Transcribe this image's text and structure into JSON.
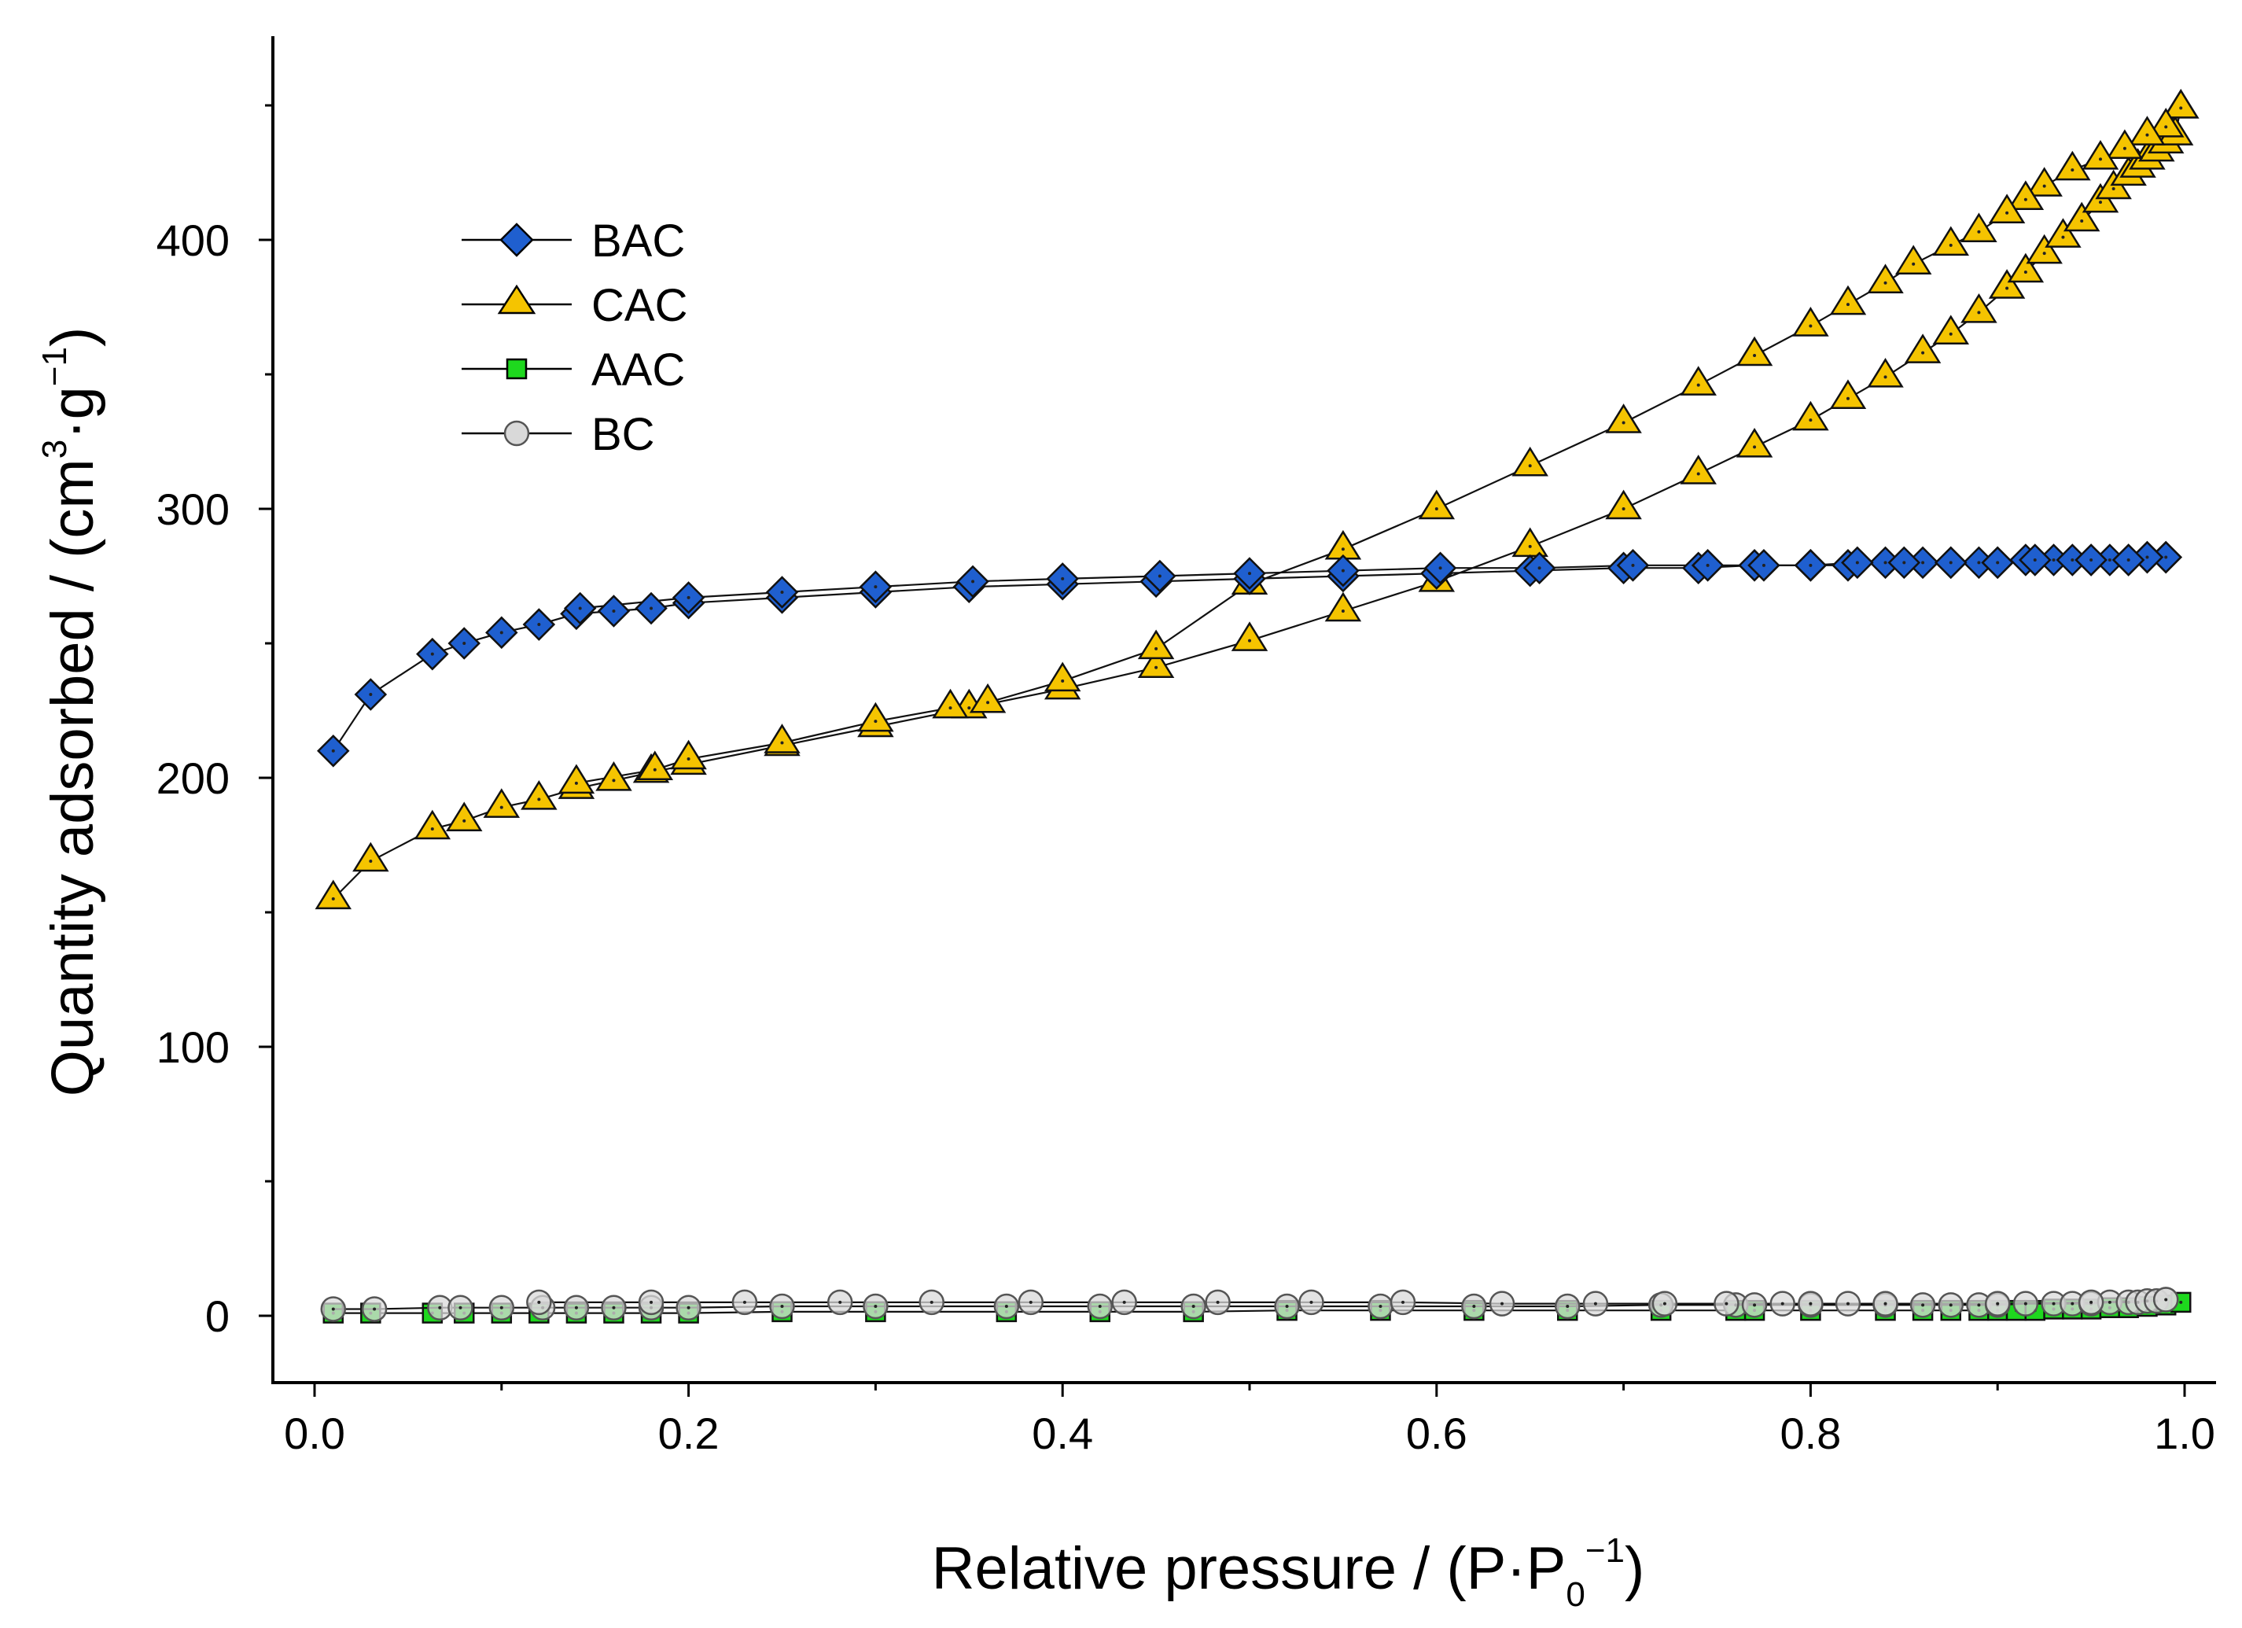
{
  "chart_data": {
    "type": "scatter",
    "title": "",
    "xlabel": {
      "main": "Relative pressure / (P·P",
      "sub": "0",
      "sup": "−1",
      "end": ")"
    },
    "ylabel": {
      "main": "Quantity adsorbed / (cm",
      "sup1": "3",
      "mid": "·g",
      "sup2": "−1",
      "end": ")"
    },
    "xlim": [
      -0.02,
      1.02
    ],
    "ylim": [
      -25,
      470
    ],
    "xticks": [
      0.0,
      0.2,
      0.4,
      0.6,
      0.8,
      1.0
    ],
    "xtick_labels": [
      "0.0",
      "0.2",
      "0.4",
      "0.6",
      "0.8",
      "1.0"
    ],
    "yticks": [
      0,
      100,
      200,
      300,
      400
    ],
    "ytick_labels": [
      "0",
      "100",
      "200",
      "300",
      "400"
    ],
    "legend_position": "top-left",
    "series": [
      {
        "name": "BAC",
        "marker": "diamond",
        "color": "#1f5fcf",
        "adsorption": [
          [
            0.01,
            210
          ],
          [
            0.03,
            231
          ],
          [
            0.063,
            246
          ],
          [
            0.08,
            250
          ],
          [
            0.1,
            254
          ],
          [
            0.12,
            257
          ],
          [
            0.14,
            261
          ],
          [
            0.16,
            262
          ],
          [
            0.18,
            263
          ],
          [
            0.2,
            265
          ],
          [
            0.25,
            267
          ],
          [
            0.3,
            269
          ],
          [
            0.35,
            271
          ],
          [
            0.4,
            272
          ],
          [
            0.45,
            273
          ],
          [
            0.5,
            274
          ],
          [
            0.55,
            275
          ],
          [
            0.6,
            276
          ],
          [
            0.65,
            277
          ],
          [
            0.7,
            278
          ],
          [
            0.74,
            278
          ],
          [
            0.77,
            279
          ],
          [
            0.8,
            279
          ],
          [
            0.82,
            279
          ],
          [
            0.84,
            280
          ],
          [
            0.86,
            280
          ],
          [
            0.875,
            280
          ],
          [
            0.89,
            280
          ],
          [
            0.9,
            280
          ],
          [
            0.915,
            281
          ],
          [
            0.93,
            281
          ],
          [
            0.94,
            281
          ],
          [
            0.95,
            281
          ],
          [
            0.96,
            281
          ],
          [
            0.97,
            281
          ],
          [
            0.98,
            282
          ],
          [
            0.99,
            282
          ]
        ],
        "desorption": [
          [
            0.99,
            282
          ],
          [
            0.98,
            282
          ],
          [
            0.97,
            281
          ],
          [
            0.95,
            281
          ],
          [
            0.92,
            281
          ],
          [
            0.9,
            280
          ],
          [
            0.875,
            280
          ],
          [
            0.85,
            280
          ],
          [
            0.825,
            280
          ],
          [
            0.8,
            279
          ],
          [
            0.775,
            279
          ],
          [
            0.745,
            279
          ],
          [
            0.705,
            279
          ],
          [
            0.655,
            278
          ],
          [
            0.602,
            278
          ],
          [
            0.55,
            277
          ],
          [
            0.5,
            276
          ],
          [
            0.452,
            275
          ],
          [
            0.4,
            274
          ],
          [
            0.352,
            273
          ],
          [
            0.3,
            271
          ],
          [
            0.25,
            269
          ],
          [
            0.2,
            267
          ],
          [
            0.142,
            263
          ]
        ]
      },
      {
        "name": "CAC",
        "marker": "triangle",
        "color": "#f5c400",
        "adsorption": [
          [
            0.01,
            155
          ],
          [
            0.03,
            169
          ],
          [
            0.063,
            181
          ],
          [
            0.08,
            184
          ],
          [
            0.1,
            189
          ],
          [
            0.12,
            192
          ],
          [
            0.14,
            196
          ],
          [
            0.16,
            199
          ],
          [
            0.18,
            202
          ],
          [
            0.2,
            205
          ],
          [
            0.25,
            212
          ],
          [
            0.3,
            219
          ],
          [
            0.35,
            226
          ],
          [
            0.4,
            233
          ],
          [
            0.45,
            241
          ],
          [
            0.5,
            251
          ],
          [
            0.55,
            262
          ],
          [
            0.6,
            273
          ],
          [
            0.65,
            286
          ],
          [
            0.7,
            300
          ],
          [
            0.74,
            313
          ],
          [
            0.77,
            323
          ],
          [
            0.8,
            333
          ],
          [
            0.82,
            341
          ],
          [
            0.84,
            349
          ],
          [
            0.86,
            358
          ],
          [
            0.875,
            365
          ],
          [
            0.89,
            373
          ],
          [
            0.905,
            382
          ],
          [
            0.915,
            388
          ],
          [
            0.925,
            395
          ],
          [
            0.935,
            401
          ],
          [
            0.945,
            407
          ],
          [
            0.955,
            414
          ],
          [
            0.962,
            419
          ],
          [
            0.97,
            424
          ],
          [
            0.975,
            427
          ],
          [
            0.98,
            430
          ],
          [
            0.985,
            433
          ],
          [
            0.99,
            436
          ],
          [
            0.995,
            439
          ],
          [
            0.998,
            449
          ]
        ],
        "desorption": [
          [
            0.998,
            449
          ],
          [
            0.99,
            442
          ],
          [
            0.98,
            439
          ],
          [
            0.968,
            434
          ],
          [
            0.955,
            430
          ],
          [
            0.94,
            426
          ],
          [
            0.925,
            420
          ],
          [
            0.915,
            415
          ],
          [
            0.905,
            410
          ],
          [
            0.89,
            403
          ],
          [
            0.875,
            398
          ],
          [
            0.855,
            391
          ],
          [
            0.84,
            384
          ],
          [
            0.82,
            376
          ],
          [
            0.8,
            368
          ],
          [
            0.77,
            357
          ],
          [
            0.74,
            346
          ],
          [
            0.7,
            332
          ],
          [
            0.65,
            316
          ],
          [
            0.6,
            300
          ],
          [
            0.55,
            285
          ],
          [
            0.5,
            272
          ],
          [
            0.45,
            248
          ],
          [
            0.4,
            236
          ],
          [
            0.36,
            228
          ],
          [
            0.34,
            226
          ],
          [
            0.3,
            221
          ],
          [
            0.25,
            213
          ],
          [
            0.2,
            207
          ],
          [
            0.182,
            203
          ],
          [
            0.14,
            198
          ]
        ]
      },
      {
        "name": "AAC",
        "marker": "square",
        "color": "#1ed81e",
        "adsorption": [
          [
            0.01,
            1
          ],
          [
            0.03,
            1
          ],
          [
            0.063,
            1
          ],
          [
            0.08,
            1
          ],
          [
            0.1,
            1
          ],
          [
            0.12,
            1
          ],
          [
            0.14,
            1
          ],
          [
            0.16,
            1
          ],
          [
            0.18,
            1
          ],
          [
            0.2,
            1
          ],
          [
            0.25,
            1.5
          ],
          [
            0.3,
            1.5
          ],
          [
            0.37,
            1.5
          ],
          [
            0.42,
            1.5
          ],
          [
            0.47,
            1.5
          ],
          [
            0.52,
            2
          ],
          [
            0.57,
            2
          ],
          [
            0.62,
            2
          ],
          [
            0.67,
            2
          ],
          [
            0.72,
            2
          ],
          [
            0.76,
            2
          ],
          [
            0.77,
            2
          ],
          [
            0.8,
            2
          ],
          [
            0.84,
            2
          ],
          [
            0.86,
            2
          ],
          [
            0.875,
            2
          ],
          [
            0.89,
            2
          ],
          [
            0.9,
            2
          ],
          [
            0.91,
            2
          ],
          [
            0.92,
            2
          ],
          [
            0.93,
            2.5
          ],
          [
            0.94,
            2.5
          ],
          [
            0.95,
            2.5
          ],
          [
            0.96,
            3
          ],
          [
            0.97,
            3
          ],
          [
            0.98,
            3.5
          ],
          [
            0.99,
            4
          ],
          [
            0.998,
            5
          ]
        ],
        "desorption": []
      },
      {
        "name": "BC",
        "marker": "circle",
        "color": "#d9d9d9",
        "adsorption": [
          [
            0.01,
            2.5
          ],
          [
            0.032,
            2.5
          ],
          [
            0.067,
            3
          ],
          [
            0.078,
            3
          ],
          [
            0.1,
            3
          ],
          [
            0.122,
            3
          ],
          [
            0.14,
            3
          ],
          [
            0.16,
            3
          ],
          [
            0.18,
            3
          ],
          [
            0.2,
            3
          ],
          [
            0.25,
            3.5
          ],
          [
            0.3,
            3.5
          ],
          [
            0.37,
            3.5
          ],
          [
            0.42,
            3.5
          ],
          [
            0.47,
            3.5
          ],
          [
            0.52,
            3.5
          ],
          [
            0.57,
            3.5
          ],
          [
            0.62,
            3.5
          ],
          [
            0.67,
            3.5
          ],
          [
            0.72,
            4
          ],
          [
            0.76,
            4
          ],
          [
            0.77,
            4
          ],
          [
            0.8,
            4
          ],
          [
            0.84,
            4
          ],
          [
            0.86,
            4
          ],
          [
            0.875,
            4
          ],
          [
            0.89,
            4
          ],
          [
            0.9,
            4
          ],
          [
            0.915,
            4.5
          ],
          [
            0.93,
            4.5
          ],
          [
            0.94,
            4.5
          ],
          [
            0.95,
            4.5
          ],
          [
            0.96,
            5
          ],
          [
            0.97,
            5
          ],
          [
            0.975,
            5
          ],
          [
            0.98,
            5.5
          ],
          [
            0.985,
            5.5
          ],
          [
            0.99,
            6
          ]
        ],
        "desorption": [
          [
            0.99,
            6
          ],
          [
            0.95,
            5
          ],
          [
            0.9,
            4.5
          ],
          [
            0.84,
            4.5
          ],
          [
            0.82,
            4.5
          ],
          [
            0.8,
            4.5
          ],
          [
            0.785,
            4.5
          ],
          [
            0.755,
            4.5
          ],
          [
            0.722,
            4.5
          ],
          [
            0.685,
            4.5
          ],
          [
            0.635,
            4.5
          ],
          [
            0.582,
            5
          ],
          [
            0.533,
            5
          ],
          [
            0.483,
            5
          ],
          [
            0.433,
            5
          ],
          [
            0.383,
            5
          ],
          [
            0.33,
            5
          ],
          [
            0.281,
            5
          ],
          [
            0.23,
            5
          ],
          [
            0.18,
            5
          ],
          [
            0.12,
            5
          ]
        ]
      }
    ]
  }
}
